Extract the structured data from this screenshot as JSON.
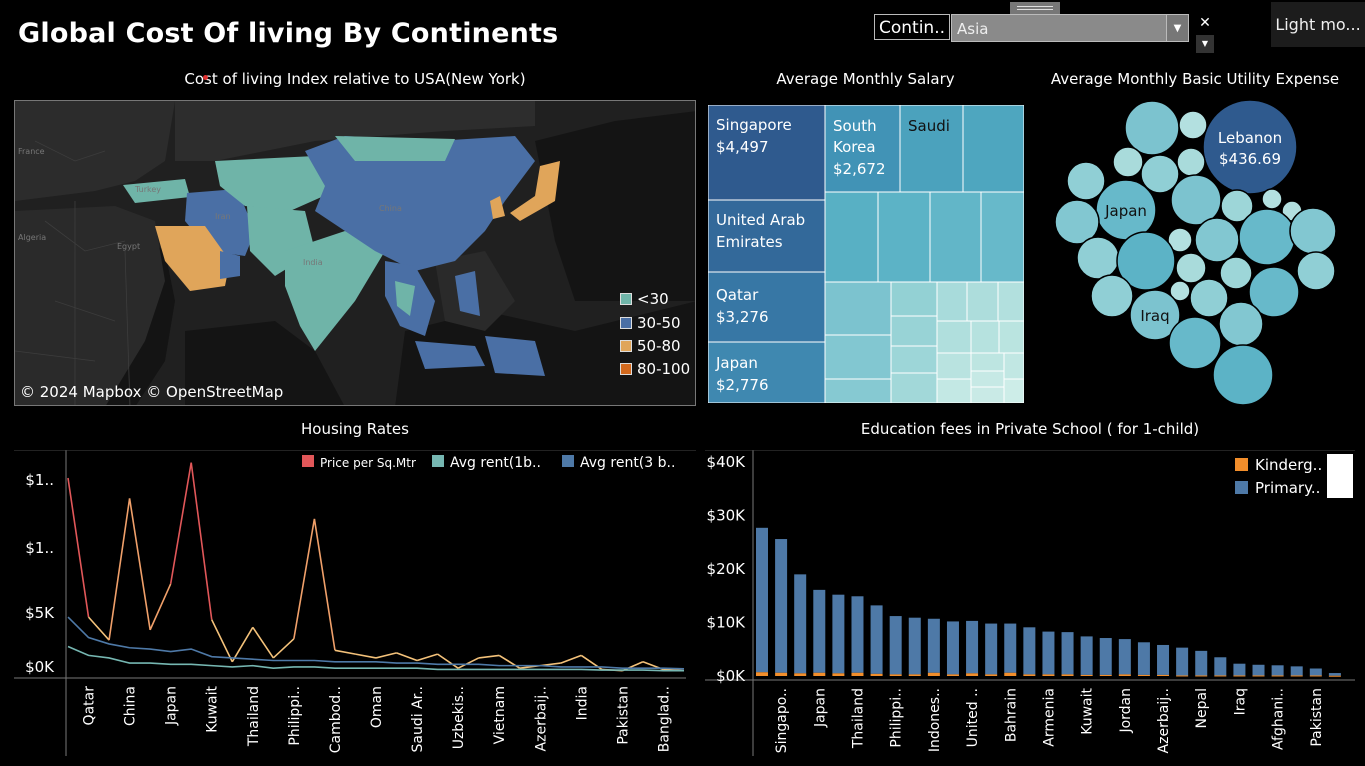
{
  "title": "Global Cost Of living By Continents",
  "filter": {
    "label": "Contin..",
    "value": "Asia",
    "clear_icon": "close-icon",
    "dropdown_icon": "chevron-down-icon"
  },
  "light_mode": "Light mo...",
  "map": {
    "title": "Cost of living Index relative to USA(New York)",
    "attribution": "© 2024 Mapbox © OpenStreetMap",
    "place_labels": [
      "France",
      "Turkey",
      "Iran",
      "Algeria",
      "Egypt",
      "India",
      "China"
    ],
    "legend": [
      {
        "label": "<30",
        "color": "#6fb4a8"
      },
      {
        "label": "30-50",
        "color": "#4a6fa5"
      },
      {
        "label": "50-80",
        "color": "#e0a55a"
      },
      {
        "label": "80-100",
        "color": "#d2691e"
      }
    ]
  },
  "salary": {
    "title": "Average Monthly  Salary",
    "labels": [
      {
        "name": "Singapore",
        "value": "$4,497"
      },
      {
        "name": "South Korea",
        "value": "$2,672"
      },
      {
        "name": "Saudi",
        "value": ""
      },
      {
        "name": "United Arab Emirates",
        "value": ""
      },
      {
        "name": "Qatar",
        "value": "$3,276"
      },
      {
        "name": "Japan",
        "value": "$2,776"
      }
    ]
  },
  "utility": {
    "title": "Average Monthly Basic Utility Expense",
    "labels": [
      {
        "name": "Lebanon",
        "value": "$436.69"
      },
      {
        "name": "Japan",
        "value": ""
      },
      {
        "name": "Iraq",
        "value": ""
      }
    ]
  },
  "housing": {
    "title": "Housing Rates",
    "legend": [
      {
        "label": "Price per Sq.Mtr",
        "color": "#e15759"
      },
      {
        "label": "Avg rent(1b..",
        "color": "#76b7b2"
      },
      {
        "label": "Avg rent(3 b..",
        "color": "#4e79a7"
      }
    ],
    "y_ticks": [
      "$1..",
      "$1..",
      "$5K",
      "$0K"
    ]
  },
  "education": {
    "title": "Education fees in Private School ( for 1-child)",
    "legend": [
      {
        "label": "Kinderg..",
        "color": "#f28e2b"
      },
      {
        "label": "Primary..",
        "color": "#4e79a7"
      }
    ],
    "y_ticks": [
      "$40K",
      "$30K",
      "$20K",
      "$10K",
      "$0K"
    ]
  },
  "chart_data": [
    {
      "type": "line",
      "title": "Housing Rates",
      "categories": [
        "",
        "Qatar",
        "",
        "China",
        "",
        "Japan",
        "",
        "Kuwait",
        "",
        "Thailand",
        "",
        "Philippi..",
        "",
        "Cambod..",
        "",
        "Oman",
        "",
        "Saudi Ar..",
        "",
        "Uzbekis..",
        "",
        "Vietnam",
        "",
        "Azerbaij..",
        "",
        "India",
        "",
        "Pakistan",
        "",
        "Banglad..",
        ""
      ],
      "series": [
        {
          "name": "Price per Sq.Mtr",
          "values": [
            15200,
            4300,
            2500,
            13600,
            3300,
            6900,
            16400,
            4100,
            800,
            3500,
            1100,
            2600,
            12000,
            1700,
            1400,
            1100,
            1500,
            900,
            1400,
            300,
            1100,
            1300,
            300,
            500,
            700,
            1300,
            200,
            100,
            800,
            200,
            100
          ]
        },
        {
          "name": "Avg rent(1b..",
          "values": [
            2000,
            1300,
            1100,
            700,
            700,
            600,
            600,
            500,
            400,
            500,
            300,
            400,
            400,
            300,
            300,
            300,
            300,
            300,
            200,
            200,
            200,
            200,
            200,
            200,
            200,
            200,
            150,
            150,
            150,
            100,
            100
          ]
        },
        {
          "name": "Avg rent(3 b..",
          "values": [
            4300,
            2700,
            2200,
            1900,
            1800,
            1600,
            1800,
            1200,
            1100,
            1000,
            900,
            900,
            900,
            800,
            800,
            800,
            700,
            700,
            600,
            600,
            600,
            500,
            500,
            500,
            400,
            400,
            400,
            300,
            300,
            300,
            250
          ]
        }
      ]
    },
    {
      "type": "bar",
      "title": "Education fees in Private School ( for 1-child)",
      "categories": [
        "",
        "Singapo..",
        "",
        "Japan",
        "",
        "Thailand",
        "",
        "Philippi..",
        "",
        "Indones..",
        "",
        "United ..",
        "",
        "Bahrain",
        "",
        "Armenia",
        "",
        "Kuwait",
        "",
        "Jordan",
        "",
        "Azerbaij..",
        "",
        "Nepal",
        "",
        "Iraq",
        "",
        "Afghani..",
        "",
        "Pakistan",
        ""
      ],
      "series": [
        {
          "name": "Kinderg..",
          "values": [
            700,
            600,
            500,
            600,
            500,
            600,
            400,
            300,
            300,
            600,
            300,
            500,
            300,
            600,
            300,
            300,
            300,
            200,
            200,
            300,
            200,
            200,
            100,
            100,
            100,
            100,
            100,
            100,
            100,
            100,
            50
          ]
        },
        {
          "name": "Primary..",
          "values": [
            27000,
            25000,
            18500,
            15500,
            14700,
            14300,
            12800,
            10900,
            10600,
            10100,
            9900,
            9800,
            9500,
            9200,
            8800,
            8000,
            7900,
            7200,
            6900,
            6600,
            6100,
            5600,
            5200,
            4600,
            3400,
            2200,
            2000,
            1900,
            1700,
            1300,
            500
          ]
        }
      ]
    }
  ]
}
